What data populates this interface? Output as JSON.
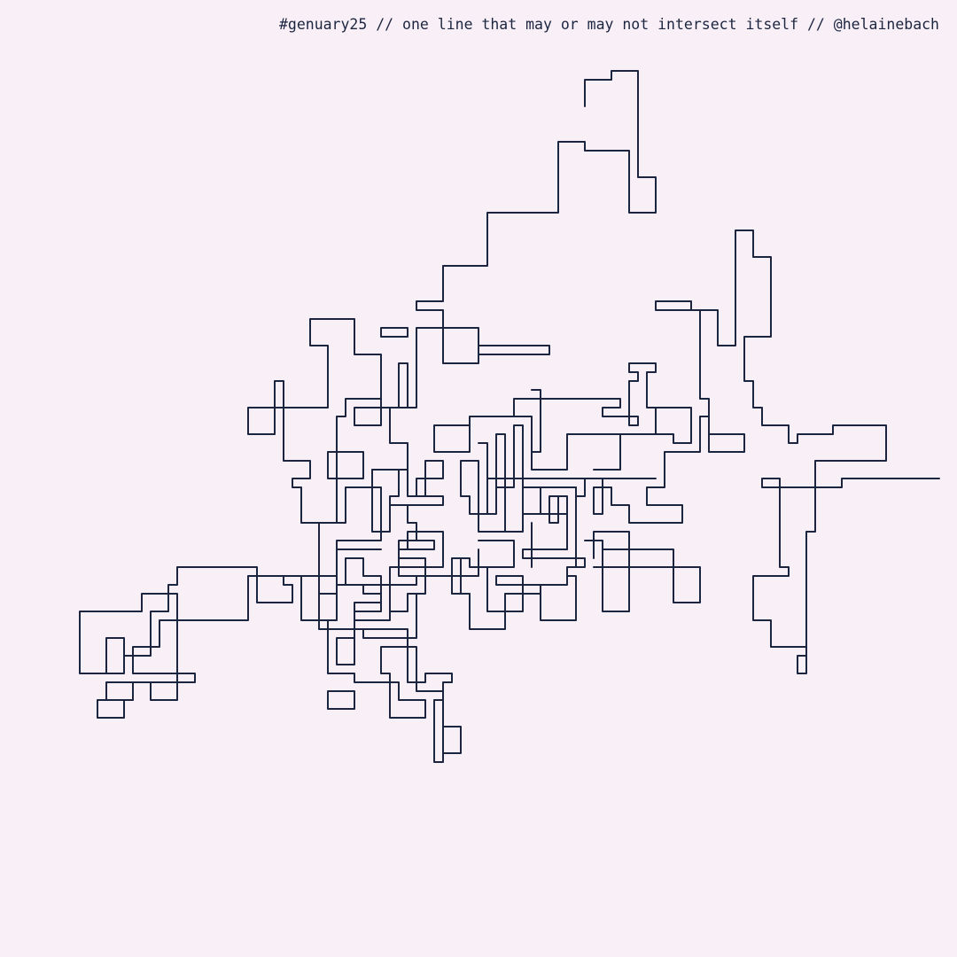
{
  "caption": "#genuary25 // one line that may or may not intersect itself // @helainebach",
  "colors": {
    "background": "#f9f0f7",
    "line": "#1c2540"
  }
}
